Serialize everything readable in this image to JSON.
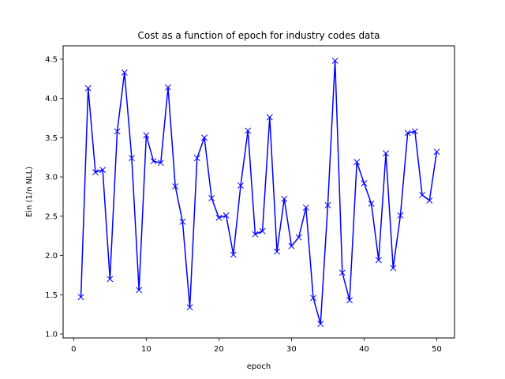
{
  "chart_data": {
    "type": "line",
    "title": "Cost as a function of epoch for industry codes data",
    "xlabel": "epoch",
    "ylabel": "Ein (1/n NLL)",
    "xlim": [
      -1.45,
      52.45
    ],
    "ylim": [
      0.95,
      4.67
    ],
    "xticks": [
      0,
      10,
      20,
      30,
      40,
      50
    ],
    "yticks": [
      1.0,
      1.5,
      2.0,
      2.5,
      3.0,
      3.5,
      4.0,
      4.5
    ],
    "grid": false,
    "series": [
      {
        "color": "#0000ff",
        "marker": "x",
        "x": [
          1,
          2,
          3,
          4,
          5,
          6,
          7,
          8,
          9,
          10,
          11,
          12,
          13,
          14,
          15,
          16,
          17,
          18,
          19,
          20,
          21,
          22,
          23,
          24,
          25,
          26,
          27,
          28,
          29,
          30,
          31,
          32,
          33,
          34,
          35,
          36,
          37,
          38,
          39,
          40,
          41,
          42,
          43,
          44,
          45,
          46,
          47,
          48,
          49,
          50
        ],
        "values": [
          1.47,
          4.13,
          3.06,
          3.09,
          1.7,
          3.58,
          4.33,
          3.24,
          1.56,
          3.53,
          3.2,
          3.18,
          4.14,
          2.88,
          2.43,
          1.34,
          3.24,
          3.5,
          2.73,
          2.48,
          2.51,
          2.01,
          2.89,
          3.59,
          2.27,
          2.31,
          3.76,
          2.05,
          2.72,
          2.12,
          2.23,
          2.61,
          1.46,
          1.13,
          2.64,
          4.48,
          1.78,
          1.43,
          3.19,
          2.92,
          2.66,
          1.94,
          3.3,
          1.84,
          2.51,
          3.56,
          3.58,
          2.77,
          2.7,
          3.32
        ]
      }
    ]
  }
}
